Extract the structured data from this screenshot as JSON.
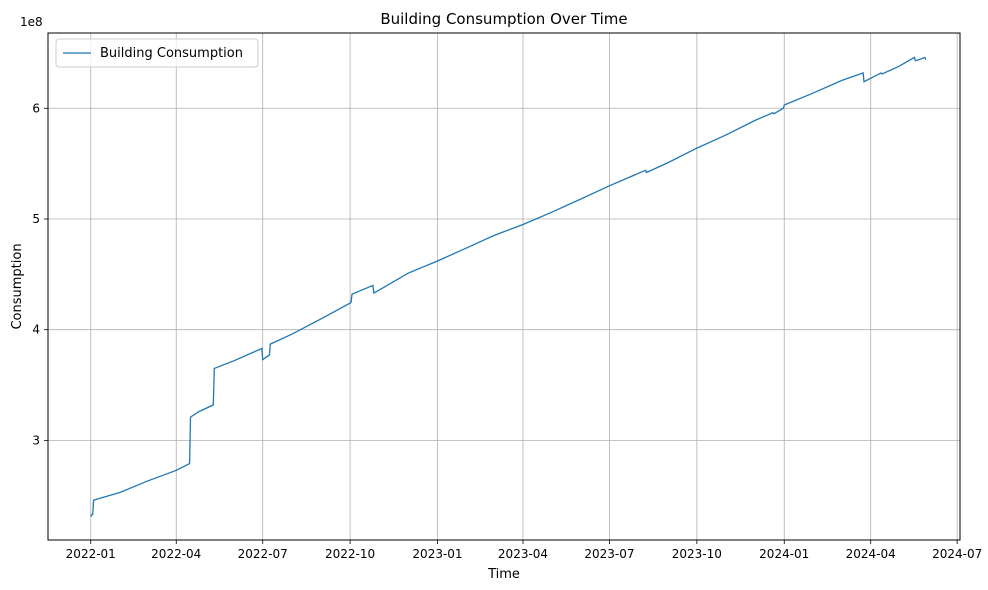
{
  "chart_data": {
    "type": "line",
    "title": "Building Consumption Over Time",
    "xlabel": "Time",
    "ylabel": "Consumption",
    "y_offset_label": "1e8",
    "y_scale": 100000000,
    "xlim": [
      "2021-11-17",
      "2024-07-04"
    ],
    "ylim": [
      2.1,
      6.68
    ],
    "x_ticks": [
      "2022-01",
      "2022-04",
      "2022-07",
      "2022-10",
      "2023-01",
      "2023-04",
      "2023-07",
      "2023-10",
      "2024-01",
      "2024-04",
      "2024-07"
    ],
    "y_ticks": [
      3,
      4,
      5,
      6
    ],
    "y_tick_labels": [
      "3",
      "4",
      "5",
      "6"
    ],
    "grid": true,
    "legend_position": "top-left",
    "color": "#1f77b4",
    "series": [
      {
        "name": "Building Consumption",
        "points": [
          [
            "2022-01-01",
            2.31
          ],
          [
            "2022-01-02",
            2.33
          ],
          [
            "2022-01-03",
            2.33
          ],
          [
            "2022-01-04",
            2.46
          ],
          [
            "2022-02-01",
            2.53
          ],
          [
            "2022-03-01",
            2.63
          ],
          [
            "2022-04-01",
            2.73
          ],
          [
            "2022-04-15",
            2.79
          ],
          [
            "2022-04-16",
            3.21
          ],
          [
            "2022-04-25",
            3.26
          ],
          [
            "2022-05-10",
            3.32
          ],
          [
            "2022-05-11",
            3.65
          ],
          [
            "2022-06-01",
            3.72
          ],
          [
            "2022-06-30",
            3.83
          ],
          [
            "2022-07-01",
            3.73
          ],
          [
            "2022-07-08",
            3.77
          ],
          [
            "2022-07-09",
            3.87
          ],
          [
            "2022-08-01",
            3.96
          ],
          [
            "2022-09-01",
            4.1
          ],
          [
            "2022-10-01",
            4.24
          ],
          [
            "2022-10-02",
            4.25
          ],
          [
            "2022-10-03",
            4.32
          ],
          [
            "2022-10-25",
            4.4
          ],
          [
            "2022-10-26",
            4.33
          ],
          [
            "2022-12-01",
            4.51
          ],
          [
            "2023-01-01",
            4.62
          ],
          [
            "2023-02-01",
            4.74
          ],
          [
            "2023-03-01",
            4.85
          ],
          [
            "2023-04-01",
            4.95
          ],
          [
            "2023-05-01",
            5.06
          ],
          [
            "2023-06-01",
            5.18
          ],
          [
            "2023-07-01",
            5.3
          ],
          [
            "2023-08-08",
            5.44
          ],
          [
            "2023-08-09",
            5.42
          ],
          [
            "2023-09-01",
            5.51
          ],
          [
            "2023-10-01",
            5.64
          ],
          [
            "2023-11-01",
            5.76
          ],
          [
            "2023-12-01",
            5.89
          ],
          [
            "2023-12-20",
            5.96
          ],
          [
            "2023-12-21",
            5.95
          ],
          [
            "2023-12-31",
            6.0
          ],
          [
            "2024-01-01",
            6.03
          ],
          [
            "2024-02-01",
            6.14
          ],
          [
            "2024-03-01",
            6.25
          ],
          [
            "2024-03-24",
            6.32
          ],
          [
            "2024-03-25",
            6.24
          ],
          [
            "2024-04-12",
            6.32
          ],
          [
            "2024-04-13",
            6.31
          ],
          [
            "2024-05-01",
            6.38
          ],
          [
            "2024-05-17",
            6.46
          ],
          [
            "2024-05-18",
            6.43
          ],
          [
            "2024-05-22",
            6.44
          ],
          [
            "2024-05-28",
            6.46
          ],
          [
            "2024-05-29",
            6.44
          ]
        ]
      }
    ]
  }
}
